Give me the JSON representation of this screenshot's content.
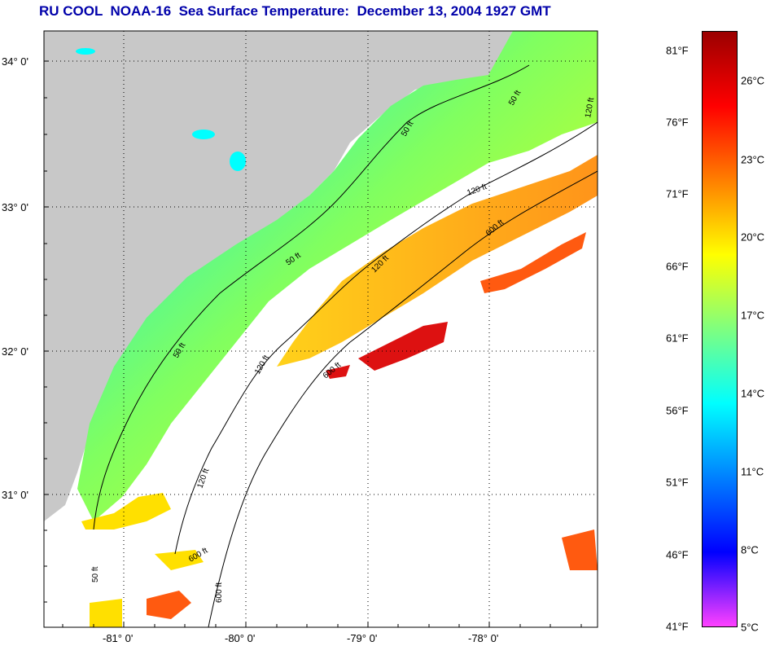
{
  "title": "RU COOL  NOAA-16  Sea Surface Temperature:  December 13, 2004 1927 GMT",
  "map": {
    "lat_labels": [
      "34° 0'",
      "33° 0'",
      "32° 0'",
      "31° 0'"
    ],
    "lon_labels": [
      "-81° 0'",
      "-80° 0'",
      "-79° 0'",
      "-78° 0'"
    ],
    "contour_labels": [
      "50 ft",
      "50 ft",
      "50 ft",
      "50 ft",
      "120 ft",
      "120 ft",
      "120 ft",
      "120 ft",
      "120 ft",
      "600 ft",
      "600 ft",
      "600 ft",
      "600 ft",
      "50 ft"
    ],
    "land_color": "#c8c8c8",
    "cloud_color": "#ffffff"
  },
  "colorbar": {
    "fahrenheit_labels": [
      "81°F",
      "76°F",
      "71°F",
      "66°F",
      "61°F",
      "56°F",
      "51°F",
      "46°F",
      "41°F"
    ],
    "celsius_labels": [
      "26°C",
      "23°C",
      "20°C",
      "17°C",
      "14°C",
      "11°C",
      "8°C",
      "5°C"
    ],
    "colors": [
      "#9b0000",
      "#ff0000",
      "#ff7f00",
      "#ffff00",
      "#7fff7f",
      "#00ffff",
      "#0080ff",
      "#0000ff",
      "#ff40ff"
    ]
  }
}
